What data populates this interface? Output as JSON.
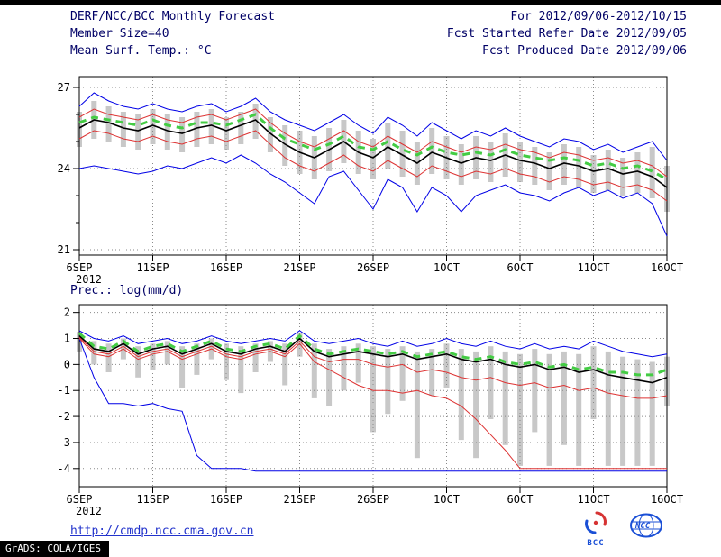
{
  "header": {
    "title": "DERF/NCC/BCC Monthly Forecast",
    "member_size": "Member Size=40",
    "temp_panel_label": "Mean Surf. Temp.: °C",
    "for_range": "For 2012/09/06-2012/10/15",
    "fcst_started": "Fcst Started Refer Date 2012/09/05",
    "fcst_produced": "Fcst Produced Date 2012/09/06"
  },
  "panel2_label": "Prec.: log(mm/d)",
  "footer": {
    "link": "http://cmdp.ncc.cma.gov.cn",
    "bcc_label": "BCC",
    "ncc_label": "NCC",
    "stamp": "GrADS: COLA/IGES"
  },
  "colors": {
    "header_text": "#000066",
    "link": "#2233cc",
    "ensemble_envelope_line": "#0000e6",
    "quartile_line": "#dd3333",
    "mean_line": "#000000",
    "climatology_line": "#44cc44",
    "spread_bar": "#c8c8c8",
    "stamp_bg": "#000000"
  },
  "chart_data": [
    {
      "type": "line",
      "title": "Mean Surf. Temp.: °C",
      "x_tick_labels": [
        "6SEP",
        "11SEP",
        "16SEP",
        "21SEP",
        "26SEP",
        "1OCT",
        "6OCT",
        "11OCT",
        "16OCT"
      ],
      "x_tick_days": [
        0,
        5,
        10,
        15,
        20,
        25,
        30,
        35,
        40
      ],
      "x_year_label": "2012",
      "x_days": 41,
      "ylim": [
        20.8,
        27.4
      ],
      "yticks": [
        21,
        24,
        27
      ],
      "y_minor_ticks": [
        22,
        23,
        25,
        26
      ],
      "grid": "dotted",
      "legend": "none",
      "bars": {
        "color": "#c8c8c8",
        "top": [
          26.1,
          26.5,
          26.3,
          26.1,
          26.0,
          26.2,
          26.0,
          25.9,
          26.1,
          26.2,
          25.9,
          26.1,
          26.4,
          25.9,
          25.6,
          25.4,
          25.2,
          25.5,
          25.8,
          25.4,
          25.1,
          25.7,
          25.4,
          25.0,
          25.5,
          25.2,
          24.9,
          25.2,
          25.0,
          25.3,
          25.0,
          24.8,
          24.6,
          24.9,
          24.8,
          24.5,
          24.7,
          24.4,
          24.6,
          24.8,
          24.1
        ],
        "bottom": [
          24.8,
          25.1,
          25.0,
          24.8,
          24.7,
          24.9,
          24.7,
          24.6,
          24.8,
          24.9,
          24.7,
          24.9,
          25.1,
          24.6,
          24.1,
          23.8,
          23.6,
          23.9,
          24.2,
          23.8,
          23.6,
          24.0,
          23.7,
          23.4,
          23.8,
          23.6,
          23.4,
          23.6,
          23.5,
          23.7,
          23.5,
          23.4,
          23.2,
          23.4,
          23.3,
          23.1,
          23.2,
          23.0,
          23.1,
          22.9,
          22.4
        ]
      },
      "series": [
        {
          "name": "ensemble-max",
          "color": "#0000e6",
          "width": 1,
          "values": [
            26.3,
            26.8,
            26.5,
            26.3,
            26.2,
            26.4,
            26.2,
            26.1,
            26.3,
            26.4,
            26.1,
            26.3,
            26.6,
            26.1,
            25.8,
            25.6,
            25.4,
            25.7,
            26.0,
            25.6,
            25.3,
            25.9,
            25.6,
            25.2,
            25.7,
            25.4,
            25.1,
            25.4,
            25.2,
            25.5,
            25.2,
            25.0,
            24.8,
            25.1,
            25.0,
            24.7,
            24.9,
            24.6,
            24.8,
            25.0,
            24.3
          ]
        },
        {
          "name": "ensemble-min",
          "color": "#0000e6",
          "width": 1,
          "values": [
            24.0,
            24.1,
            24.0,
            23.9,
            23.8,
            23.9,
            24.1,
            24.0,
            24.2,
            24.4,
            24.2,
            24.5,
            24.2,
            23.8,
            23.5,
            23.1,
            22.7,
            23.7,
            23.9,
            23.2,
            22.5,
            23.6,
            23.3,
            22.4,
            23.3,
            23.0,
            22.4,
            23.0,
            23.2,
            23.4,
            23.1,
            23.0,
            22.8,
            23.1,
            23.3,
            23.0,
            23.2,
            22.9,
            23.1,
            22.7,
            21.5
          ]
        },
        {
          "name": "upper-quartile",
          "color": "#dd3333",
          "width": 1,
          "values": [
            25.9,
            26.2,
            26.0,
            25.9,
            25.8,
            26.0,
            25.8,
            25.7,
            25.9,
            26.0,
            25.8,
            26.0,
            26.2,
            25.7,
            25.3,
            25.0,
            24.8,
            25.1,
            25.4,
            25.0,
            24.8,
            25.2,
            24.9,
            24.6,
            25.0,
            24.8,
            24.6,
            24.8,
            24.7,
            24.9,
            24.7,
            24.6,
            24.4,
            24.6,
            24.5,
            24.3,
            24.4,
            24.2,
            24.3,
            24.1,
            23.7
          ]
        },
        {
          "name": "lower-quartile",
          "color": "#dd3333",
          "width": 1,
          "values": [
            25.1,
            25.4,
            25.3,
            25.1,
            25.0,
            25.2,
            25.0,
            24.9,
            25.1,
            25.2,
            25.0,
            25.2,
            25.4,
            24.9,
            24.4,
            24.1,
            23.9,
            24.2,
            24.5,
            24.1,
            23.9,
            24.3,
            24.0,
            23.7,
            24.1,
            23.9,
            23.7,
            23.9,
            23.8,
            24.0,
            23.8,
            23.7,
            23.5,
            23.7,
            23.6,
            23.4,
            23.5,
            23.3,
            23.4,
            23.2,
            22.8
          ]
        },
        {
          "name": "ensemble-mean",
          "color": "#000000",
          "width": 1.6,
          "values": [
            25.5,
            25.8,
            25.7,
            25.5,
            25.4,
            25.6,
            25.4,
            25.3,
            25.5,
            25.6,
            25.4,
            25.6,
            25.8,
            25.3,
            24.9,
            24.6,
            24.4,
            24.7,
            25.0,
            24.6,
            24.4,
            24.8,
            24.5,
            24.2,
            24.6,
            24.4,
            24.2,
            24.4,
            24.3,
            24.5,
            24.3,
            24.2,
            24.0,
            24.2,
            24.1,
            23.9,
            24.0,
            23.8,
            23.9,
            23.7,
            23.3
          ]
        },
        {
          "name": "climatology",
          "color": "#44cc44",
          "width": 3,
          "dash": "8 6",
          "values": [
            25.7,
            25.9,
            25.8,
            25.7,
            25.6,
            25.8,
            25.6,
            25.5,
            25.7,
            25.7,
            25.6,
            25.8,
            26.0,
            25.5,
            25.1,
            24.9,
            24.7,
            24.9,
            25.2,
            24.8,
            24.7,
            25.0,
            24.7,
            24.5,
            24.8,
            24.6,
            24.5,
            24.6,
            24.5,
            24.7,
            24.5,
            24.4,
            24.3,
            24.4,
            24.3,
            24.1,
            24.2,
            24.0,
            24.1,
            23.9,
            23.6
          ]
        }
      ]
    },
    {
      "type": "line",
      "title": "Prec.: log(mm/d)",
      "x_tick_labels": [
        "6SEP",
        "11SEP",
        "16SEP",
        "21SEP",
        "26SEP",
        "1OCT",
        "6OCT",
        "11OCT",
        "16OCT"
      ],
      "x_tick_days": [
        0,
        5,
        10,
        15,
        20,
        25,
        30,
        35,
        40
      ],
      "x_year_label": "2012",
      "x_days": 41,
      "ylim": [
        -4.7,
        2.3
      ],
      "yticks": [
        2,
        1,
        0,
        -1,
        -2,
        -3,
        -4
      ],
      "y_minor_ticks": [],
      "grid": "dotted",
      "legend": "none",
      "bars": {
        "color": "#c8c8c8",
        "top": [
          1.25,
          0.9,
          0.8,
          1.0,
          0.7,
          0.8,
          0.9,
          0.7,
          0.8,
          1.0,
          0.8,
          0.7,
          0.8,
          0.9,
          0.8,
          1.2,
          0.8,
          0.6,
          0.7,
          0.8,
          0.7,
          0.6,
          0.7,
          0.5,
          0.6,
          0.8,
          0.6,
          0.5,
          0.7,
          0.5,
          0.4,
          0.6,
          0.4,
          0.5,
          0.4,
          0.7,
          0.5,
          0.3,
          0.2,
          0.1,
          0.3
        ],
        "bottom": [
          0.5,
          0.0,
          -0.3,
          0.2,
          -0.5,
          -0.2,
          0.0,
          -0.9,
          -0.4,
          0.2,
          -0.6,
          -1.1,
          -0.3,
          0.1,
          -0.8,
          0.3,
          -1.3,
          -1.6,
          -1.0,
          -0.7,
          -2.6,
          -1.9,
          -1.4,
          -3.6,
          -1.2,
          -0.9,
          -2.9,
          -3.6,
          -2.1,
          -3.1,
          -3.9,
          -2.6,
          -3.9,
          -3.1,
          -3.9,
          -2.1,
          -3.9,
          -3.9,
          -3.9,
          -3.9,
          -1.6
        ]
      },
      "series": [
        {
          "name": "ensemble-max",
          "color": "#0000e6",
          "width": 1,
          "values": [
            1.3,
            1.0,
            0.9,
            1.1,
            0.8,
            0.9,
            1.0,
            0.8,
            0.9,
            1.1,
            0.9,
            0.8,
            0.9,
            1.0,
            0.9,
            1.3,
            0.9,
            0.8,
            0.9,
            1.0,
            0.8,
            0.7,
            0.9,
            0.7,
            0.8,
            1.0,
            0.8,
            0.7,
            0.9,
            0.7,
            0.6,
            0.8,
            0.6,
            0.7,
            0.6,
            0.9,
            0.7,
            0.5,
            0.4,
            0.3,
            0.4
          ]
        },
        {
          "name": "ensemble-min",
          "color": "#0000e6",
          "width": 1,
          "values": [
            1.0,
            -0.5,
            -1.5,
            -1.5,
            -1.6,
            -1.5,
            -1.7,
            -1.8,
            -3.5,
            -4.0,
            -4.0,
            -4.0,
            -4.1,
            -4.1,
            -4.1,
            -4.1,
            -4.1,
            -4.1,
            -4.1,
            -4.1,
            -4.1,
            -4.1,
            -4.1,
            -4.1,
            -4.1,
            -4.1,
            -4.1,
            -4.1,
            -4.1,
            -4.1,
            -4.1,
            -4.1,
            -4.1,
            -4.1,
            -4.1,
            -4.1,
            -4.1,
            -4.1,
            -4.1,
            -4.1,
            -4.1
          ]
        },
        {
          "name": "upper-quartile",
          "color": "#dd3333",
          "width": 1,
          "values": [
            1.05,
            0.5,
            0.4,
            0.7,
            0.3,
            0.5,
            0.6,
            0.3,
            0.5,
            0.7,
            0.4,
            0.3,
            0.5,
            0.6,
            0.4,
            0.9,
            0.3,
            0.1,
            0.2,
            0.2,
            0.0,
            -0.1,
            0.0,
            -0.3,
            -0.2,
            -0.3,
            -0.5,
            -0.6,
            -0.5,
            -0.7,
            -0.8,
            -0.7,
            -0.9,
            -0.8,
            -1.0,
            -0.9,
            -1.1,
            -1.2,
            -1.3,
            -1.3,
            -1.2
          ]
        },
        {
          "name": "lower-quartile",
          "color": "#dd3333",
          "width": 1,
          "values": [
            1.0,
            0.4,
            0.3,
            0.6,
            0.2,
            0.4,
            0.5,
            0.2,
            0.4,
            0.6,
            0.3,
            0.2,
            0.4,
            0.5,
            0.3,
            0.8,
            0.1,
            -0.2,
            -0.5,
            -0.8,
            -1.0,
            -1.0,
            -1.1,
            -1.0,
            -1.2,
            -1.3,
            -1.6,
            -2.1,
            -2.7,
            -3.3,
            -4.0,
            -4.0,
            -4.0,
            -4.0,
            -4.0,
            -4.0,
            -4.0,
            -4.0,
            -4.0,
            -4.0,
            -4.0
          ]
        },
        {
          "name": "ensemble-mean",
          "color": "#000000",
          "width": 1.6,
          "values": [
            1.1,
            0.6,
            0.5,
            0.8,
            0.4,
            0.6,
            0.7,
            0.4,
            0.6,
            0.8,
            0.5,
            0.4,
            0.6,
            0.7,
            0.5,
            1.0,
            0.5,
            0.3,
            0.4,
            0.5,
            0.4,
            0.3,
            0.4,
            0.2,
            0.3,
            0.4,
            0.2,
            0.1,
            0.2,
            0.0,
            -0.1,
            0.0,
            -0.2,
            -0.1,
            -0.3,
            -0.2,
            -0.4,
            -0.5,
            -0.6,
            -0.7,
            -0.5
          ]
        },
        {
          "name": "climatology",
          "color": "#44cc44",
          "width": 3,
          "dash": "8 6",
          "values": [
            1.2,
            0.7,
            0.6,
            0.9,
            0.5,
            0.7,
            0.8,
            0.5,
            0.7,
            0.9,
            0.6,
            0.5,
            0.7,
            0.8,
            0.6,
            1.1,
            0.6,
            0.4,
            0.5,
            0.6,
            0.5,
            0.4,
            0.5,
            0.3,
            0.4,
            0.5,
            0.3,
            0.2,
            0.3,
            0.1,
            0.0,
            0.1,
            -0.1,
            0.0,
            -0.2,
            -0.1,
            -0.3,
            -0.3,
            -0.4,
            -0.4,
            -0.2
          ]
        }
      ]
    }
  ]
}
